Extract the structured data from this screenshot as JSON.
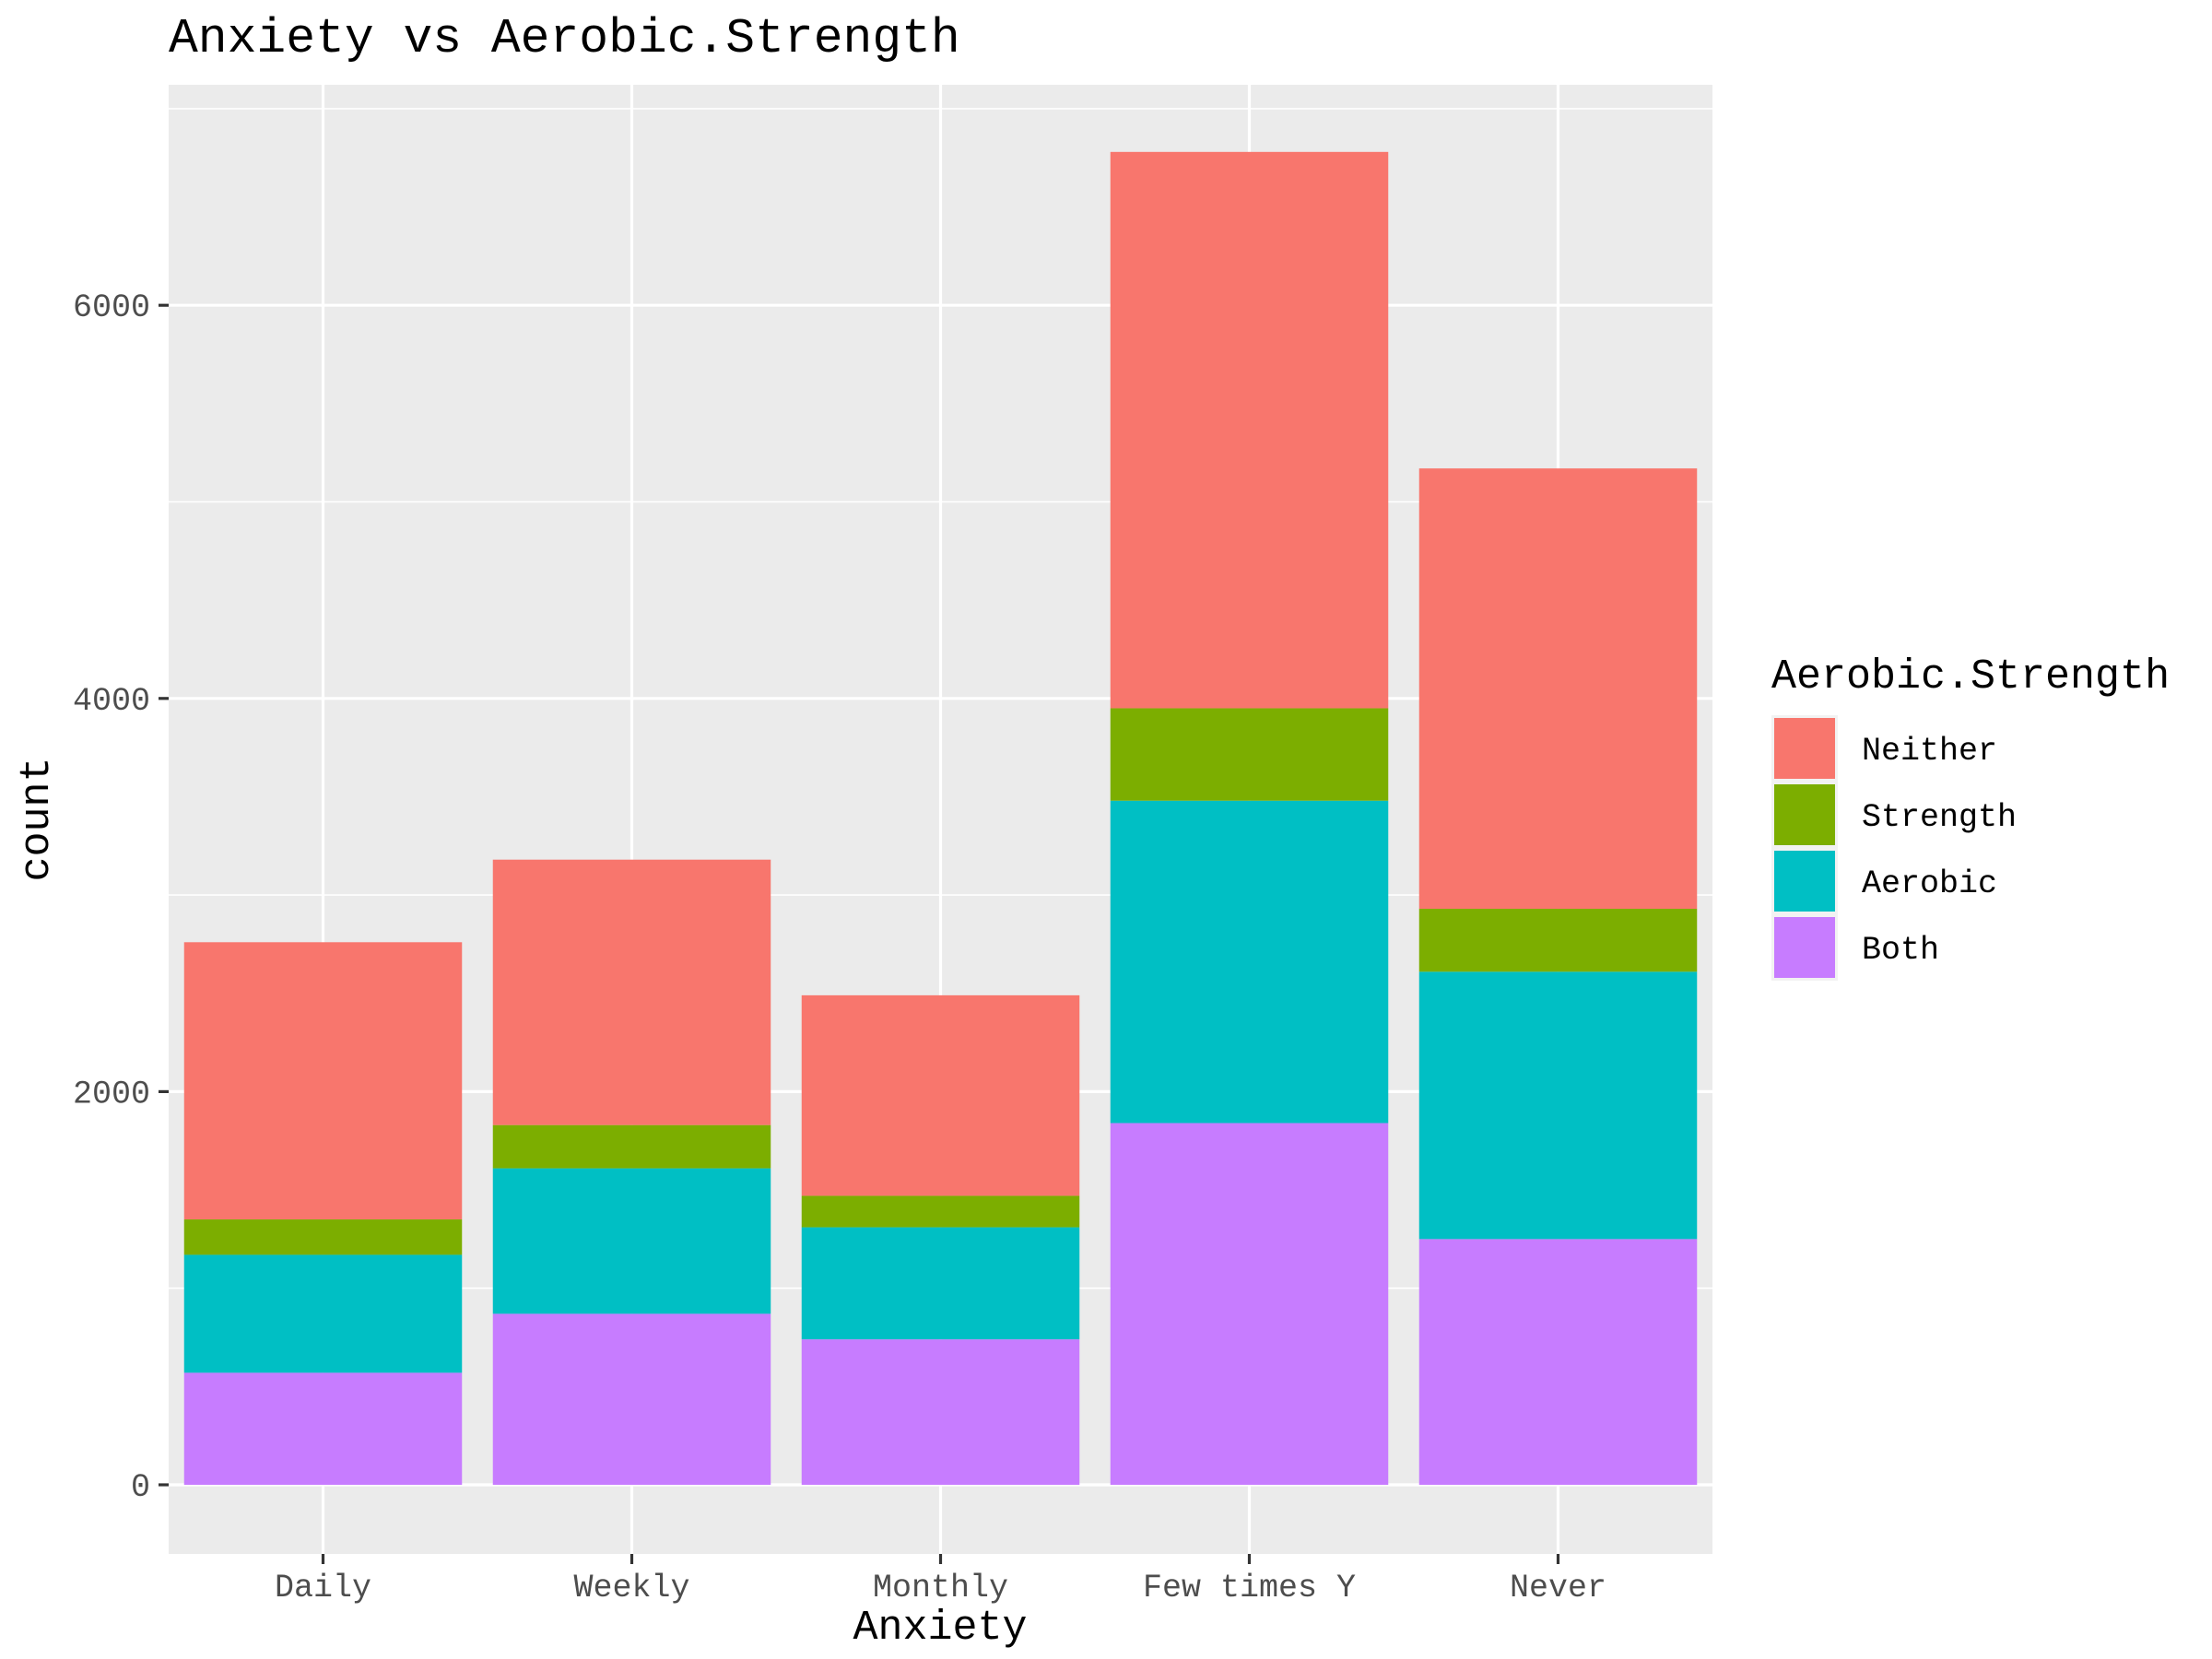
{
  "chart_data": {
    "type": "bar",
    "stacked": true,
    "title": "Anxiety vs Aerobic.Strength",
    "xlabel": "Anxiety",
    "ylabel": "count",
    "categories": [
      "Daily",
      "Weekly",
      "Monthly",
      "Few times Y",
      "Never"
    ],
    "ylim": [
      -330,
      7000
    ],
    "yticks": [
      0,
      2000,
      4000,
      6000
    ],
    "ytick_labels": [
      "0",
      "2000",
      "4000",
      "6000"
    ],
    "grid": true,
    "legend": {
      "title": "Aerobic.Strength",
      "position": "right"
    },
    "series": [
      {
        "name": "Both",
        "color": "#C77CFF",
        "values": [
          570,
          870,
          740,
          1840,
          1250
        ]
      },
      {
        "name": "Aerobic",
        "color": "#00BFC4",
        "values": [
          600,
          740,
          570,
          1640,
          1360
        ]
      },
      {
        "name": "Strength",
        "color": "#7CAE00",
        "values": [
          180,
          220,
          160,
          470,
          320
        ]
      },
      {
        "name": "Neither",
        "color": "#F8766D",
        "values": [
          1410,
          1350,
          1020,
          2830,
          2240
        ]
      }
    ],
    "legend_order": [
      "Neither",
      "Strength",
      "Aerobic",
      "Both"
    ]
  }
}
